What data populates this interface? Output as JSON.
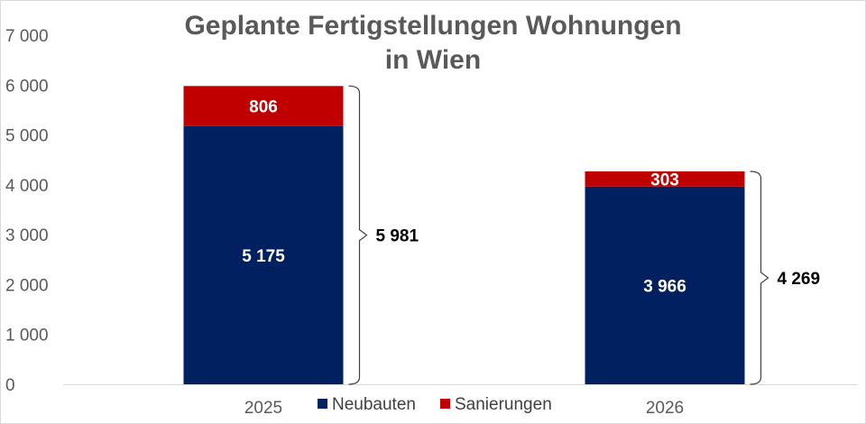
{
  "chart_data": {
    "type": "bar",
    "stacked": true,
    "title": [
      "Geplante Fertigstellungen Wohnungen",
      "in Wien"
    ],
    "categories": [
      "2025",
      "2026"
    ],
    "series": [
      {
        "name": "Neubauten",
        "values": [
          5175,
          3966
        ],
        "labels": [
          "5 175",
          "3 966"
        ],
        "color": "#002060"
      },
      {
        "name": "Sanierungen",
        "values": [
          806,
          303
        ],
        "labels": [
          "806",
          "303"
        ],
        "color": "#C00000"
      }
    ],
    "totals": [
      5981,
      4269
    ],
    "total_labels": [
      "5 981",
      "4 269"
    ],
    "ylim": [
      0,
      7000
    ],
    "yticks": [
      "0",
      "1 000",
      "2 000",
      "3 000",
      "4 000",
      "5 000",
      "6 000",
      "7 000"
    ],
    "legend": "bottom-center",
    "grid": false
  }
}
